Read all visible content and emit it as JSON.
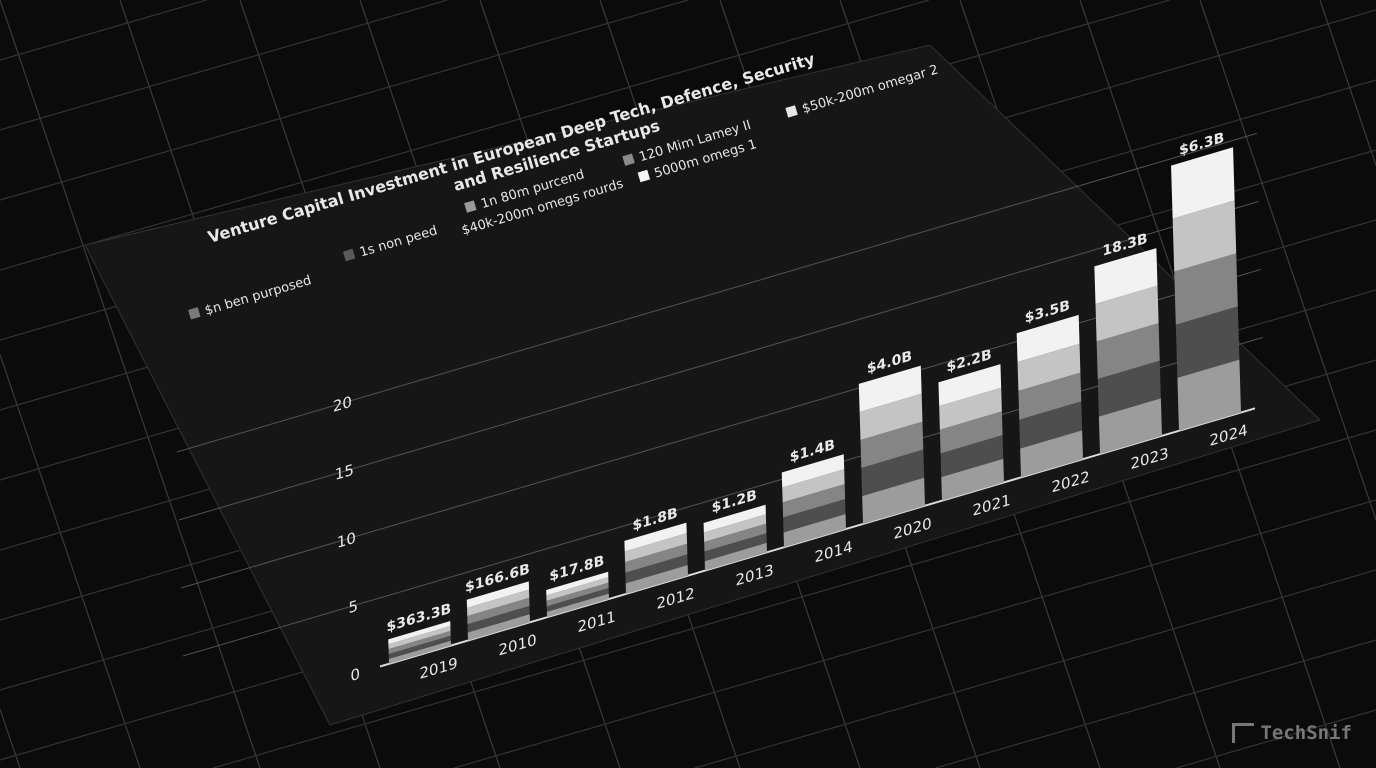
{
  "chart_data": {
    "type": "bar",
    "stacked": true,
    "title": "Venture Capital Investment in European Deep Tech, Defence, Security and Resilience Startups",
    "title_lines": [
      "Venture Capital Investment in European Deep Tech, Defence, Security",
      "and Resilience Startups"
    ],
    "legend": [
      {
        "label": "$n ben purposed",
        "color": "#7a7a7a"
      },
      {
        "label": "1s non peed",
        "color": "#5a5a5a"
      },
      {
        "label": "1n 80m purcend",
        "color": "#9a9a9a"
      },
      {
        "label": "$40k-200m omegs rourds",
        "color": ""
      },
      {
        "label": "120 Mim Lamey II",
        "color": "#8a8a8a"
      },
      {
        "label": "5000m omegs 1",
        "color": "#f5f5f5"
      },
      {
        "label": "$50k-200m omegar 2",
        "color": "#e6e6e6"
      }
    ],
    "legend_placement": "top-left",
    "categories": [
      "2019",
      "2010",
      "2011",
      "2012",
      "2013",
      "2014",
      "2020",
      "2021",
      "2022",
      "2023",
      "2024"
    ],
    "values": [
      1.8,
      3.0,
      2.0,
      3.9,
      3.5,
      5.5,
      10.3,
      8.7,
      10.6,
      13.8,
      19.5
    ],
    "data_labels": [
      "$363.3B",
      "$166.6B",
      "$17.8B",
      "$1.8B",
      "$1.2B",
      "$1.4B",
      "$4.0B",
      "$2.2B",
      "$3.5B",
      "18.3B",
      "$6.3B"
    ],
    "yticks": [
      0,
      5,
      10,
      15,
      20
    ],
    "ylim": [
      0,
      20
    ],
    "xlabel": "",
    "ylabel": "",
    "grid": true,
    "segment_colors": [
      "#9c9c9c",
      "#4e4e4e",
      "#858585",
      "#c4c4c4",
      "#f2f2f2"
    ]
  },
  "watermark": "TechSnif"
}
